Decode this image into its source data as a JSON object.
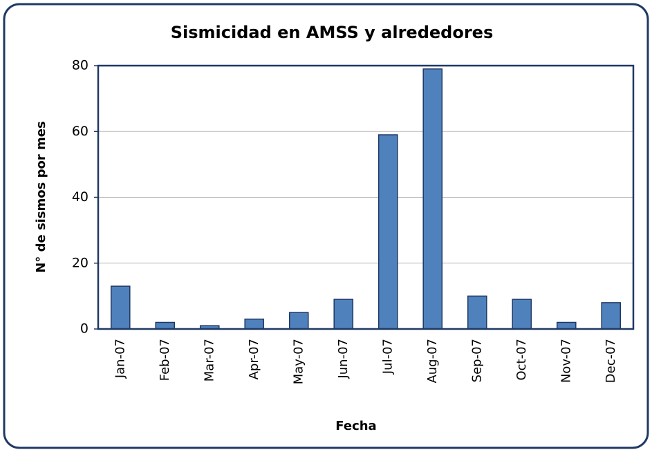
{
  "chart_data": {
    "type": "bar",
    "title": "Sismicidad en AMSS y alrededores",
    "x_label": "Fecha",
    "y_label": "N° de sismos por mes",
    "categories": [
      "Jan-07",
      "Feb-07",
      "Mar-07",
      "Apr-07",
      "May-07",
      "Jun-07",
      "Jul-07",
      "Aug-07",
      "Sep-07",
      "Oct-07",
      "Nov-07",
      "Dec-07"
    ],
    "values": [
      13,
      2,
      1,
      3,
      5,
      9,
      59,
      79,
      10,
      9,
      2,
      8
    ],
    "color": "#4f81bd",
    "ylim": [
      0,
      80
    ],
    "yticks": [
      0,
      20,
      40,
      60,
      80
    ],
    "grid": true
  }
}
